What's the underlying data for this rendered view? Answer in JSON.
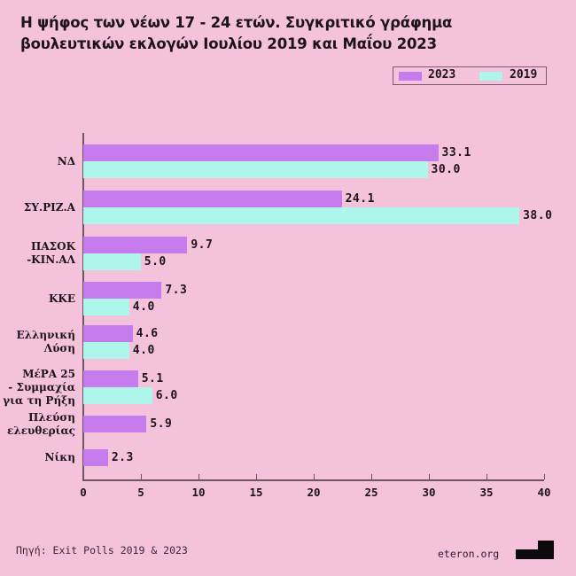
{
  "title": "Η ψήφος των νέων 17 - 24 ετών. Συγκριτικό γράφημα βουλευτικών εκλογών Ιουλίου 2019 και Μαΐου 2023",
  "legend": [
    {
      "label": "2023",
      "color": "#c77cee"
    },
    {
      "label": "2019",
      "color": "#aef6ec"
    }
  ],
  "source": "Πηγή: Exit Polls 2019 & 2023",
  "site": "eteron.org",
  "colors": {
    "background": "#f5c2dc",
    "series_2023": "#c77cee",
    "series_2019": "#aef6ec"
  },
  "chart_data": {
    "type": "bar",
    "orientation": "horizontal",
    "title": "Η ψήφος των νέων 17 - 24 ετών. Συγκριτικό γράφημα βουλευτικών εκλογών Ιουλίου 2019 και Μαΐου 2023",
    "categories": [
      "ΝΔ",
      "ΣΥ.ΡΙΖ.Α",
      "ΠΑΣΟΚ\n-ΚΙΝ.ΑΛ",
      "ΚΚΕ",
      "Ελληνική\nΛύση",
      "ΜέΡΑ 25\n-  Συμμαχία\nγια τη Ρήξη",
      "Πλεύση\nελευθερίας",
      "Νίκη"
    ],
    "series": [
      {
        "name": "2023",
        "values": [
          33.1,
          24.1,
          9.7,
          7.3,
          4.6,
          5.1,
          5.9,
          2.3
        ]
      },
      {
        "name": "2019",
        "values": [
          30.0,
          38.0,
          5.0,
          4.0,
          4.0,
          6.0,
          null,
          null
        ]
      }
    ],
    "value_labels": {
      "2023": [
        "33.1",
        "24.1",
        "9.7",
        "7.3",
        "4.6",
        "5.1",
        "5.9",
        "2.3"
      ],
      "2019": [
        "30.0",
        "38.0",
        "5.0",
        "4.0",
        "4.0",
        "6.0",
        null,
        null
      ]
    },
    "xlabel": "",
    "ylabel": "",
    "xlim": [
      0,
      40
    ],
    "xticks": [
      "0",
      "5",
      "10",
      "15",
      "20",
      "25",
      "30",
      "35",
      "40"
    ],
    "grid": false,
    "legend_position": "top-right",
    "source": "Πηγή: Exit Polls 2019 & 2023"
  }
}
